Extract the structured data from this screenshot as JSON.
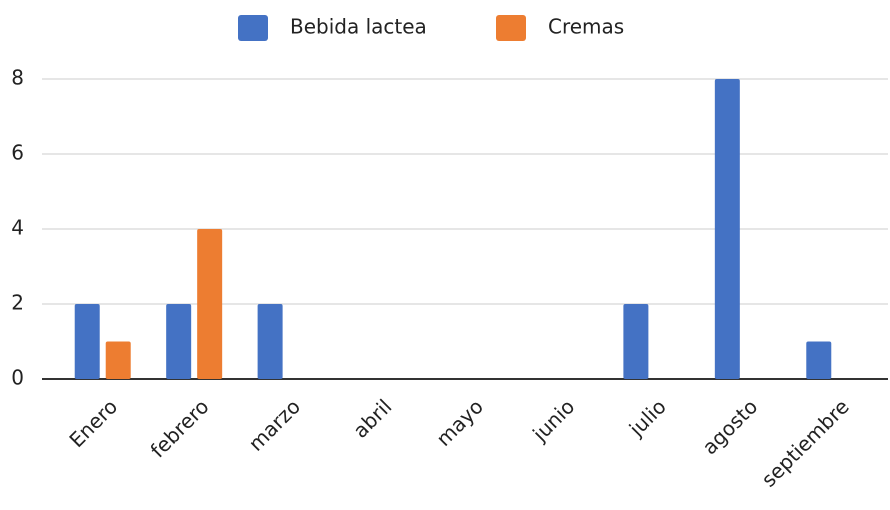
{
  "chart_data": {
    "type": "bar",
    "categories": [
      "Enero",
      "febrero",
      "marzo",
      "abril",
      "mayo",
      "junio",
      "julio",
      "agosto",
      "septiembre"
    ],
    "series": [
      {
        "name": "Bebida lactea",
        "color": "#4472c4",
        "values": [
          2,
          2,
          2,
          null,
          null,
          null,
          2,
          8,
          1
        ]
      },
      {
        "name": "Cremas",
        "color": "#ed7d31",
        "values": [
          1,
          4,
          null,
          null,
          null,
          null,
          null,
          null,
          null
        ]
      }
    ],
    "ylim": [
      0,
      8
    ],
    "yticks": [
      0,
      2,
      4,
      6,
      8
    ],
    "grid": true,
    "legend": "top"
  }
}
